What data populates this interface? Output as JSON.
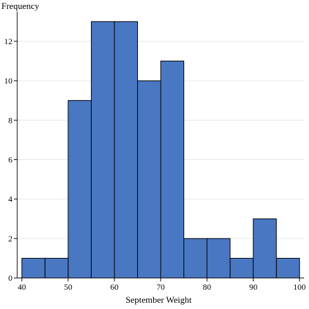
{
  "chart_data": {
    "type": "bar",
    "subtype": "histogram",
    "xlabel": "September Weight",
    "ylabel": "Frequency",
    "bins": [
      {
        "start": 40,
        "end": 45,
        "count": 1
      },
      {
        "start": 45,
        "end": 50,
        "count": 1
      },
      {
        "start": 50,
        "end": 55,
        "count": 9
      },
      {
        "start": 55,
        "end": 60,
        "count": 13
      },
      {
        "start": 60,
        "end": 65,
        "count": 13
      },
      {
        "start": 65,
        "end": 70,
        "count": 10
      },
      {
        "start": 70,
        "end": 75,
        "count": 11
      },
      {
        "start": 75,
        "end": 80,
        "count": 2
      },
      {
        "start": 80,
        "end": 85,
        "count": 2
      },
      {
        "start": 85,
        "end": 90,
        "count": 1
      },
      {
        "start": 90,
        "end": 95,
        "count": 3
      },
      {
        "start": 95,
        "end": 100,
        "count": 1
      }
    ],
    "xticks": [
      40,
      50,
      60,
      70,
      80,
      90,
      100
    ],
    "yticks": [
      0,
      2,
      4,
      6,
      8,
      10,
      12
    ],
    "xlim": [
      39,
      101
    ],
    "ylim": [
      0,
      13.5
    ],
    "grid": true,
    "bar_color": "#4a77c2",
    "bar_edge_color": "#000000",
    "grid_color": "#e6e6e6"
  }
}
